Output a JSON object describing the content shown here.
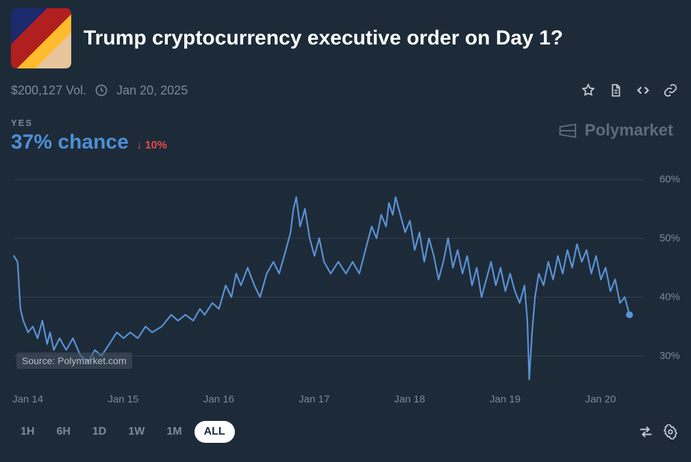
{
  "market": {
    "title": "Trump cryptocurrency executive order on Day 1?",
    "volume_text": "$200,127 Vol.",
    "resolution_date": "Jan 20, 2025"
  },
  "outcome": {
    "label": "YES",
    "chance_text": "37% chance",
    "delta_text": "10%",
    "delta_direction": "down",
    "chance_color": "#4f8fd6",
    "delta_color": "#e64a4a"
  },
  "watermark": {
    "text": "Polymarket"
  },
  "chart": {
    "type": "line",
    "line_color": "#5b93d6",
    "line_width": 2.2,
    "background_color": "#1d2b39",
    "grid_color": "#33414f",
    "end_marker_color": "#5b93d6",
    "end_marker_radius": 5,
    "x_axis": {
      "min": 14,
      "max": 20.6,
      "ticks": [
        14,
        15,
        16,
        17,
        18,
        19,
        20
      ],
      "tick_labels": [
        "Jan 14",
        "Jan 15",
        "Jan 16",
        "Jan 17",
        "Jan 18",
        "Jan 19",
        "Jan 20"
      ],
      "label_fontsize": 15,
      "label_color": "#7d8a97"
    },
    "y_axis": {
      "min": 25,
      "max": 62,
      "gridlines": [
        30,
        40,
        50,
        60
      ],
      "tick_labels": [
        "30%",
        "40%",
        "50%",
        "60%"
      ],
      "label_fontsize": 15,
      "label_color": "#7d8a97"
    },
    "series": [
      {
        "x": 14.0,
        "y": 47
      },
      {
        "x": 14.04,
        "y": 46
      },
      {
        "x": 14.07,
        "y": 38
      },
      {
        "x": 14.1,
        "y": 36
      },
      {
        "x": 14.15,
        "y": 34
      },
      {
        "x": 14.2,
        "y": 35
      },
      {
        "x": 14.25,
        "y": 33
      },
      {
        "x": 14.3,
        "y": 36
      },
      {
        "x": 14.35,
        "y": 32
      },
      {
        "x": 14.38,
        "y": 34
      },
      {
        "x": 14.42,
        "y": 31
      },
      {
        "x": 14.48,
        "y": 33
      },
      {
        "x": 14.55,
        "y": 31
      },
      {
        "x": 14.62,
        "y": 33
      },
      {
        "x": 14.7,
        "y": 30
      },
      {
        "x": 14.78,
        "y": 29
      },
      {
        "x": 14.85,
        "y": 31
      },
      {
        "x": 14.92,
        "y": 30
      },
      {
        "x": 15.0,
        "y": 32
      },
      {
        "x": 15.08,
        "y": 34
      },
      {
        "x": 15.15,
        "y": 33
      },
      {
        "x": 15.22,
        "y": 34
      },
      {
        "x": 15.3,
        "y": 33
      },
      {
        "x": 15.38,
        "y": 35
      },
      {
        "x": 15.45,
        "y": 34
      },
      {
        "x": 15.55,
        "y": 35
      },
      {
        "x": 15.65,
        "y": 37
      },
      {
        "x": 15.72,
        "y": 36
      },
      {
        "x": 15.8,
        "y": 37
      },
      {
        "x": 15.88,
        "y": 36
      },
      {
        "x": 15.95,
        "y": 38
      },
      {
        "x": 16.0,
        "y": 37
      },
      {
        "x": 16.08,
        "y": 39
      },
      {
        "x": 16.15,
        "y": 38
      },
      {
        "x": 16.22,
        "y": 42
      },
      {
        "x": 16.28,
        "y": 40
      },
      {
        "x": 16.33,
        "y": 44
      },
      {
        "x": 16.38,
        "y": 42
      },
      {
        "x": 16.45,
        "y": 45
      },
      {
        "x": 16.52,
        "y": 42
      },
      {
        "x": 16.58,
        "y": 40
      },
      {
        "x": 16.65,
        "y": 44
      },
      {
        "x": 16.72,
        "y": 46
      },
      {
        "x": 16.78,
        "y": 44
      },
      {
        "x": 16.85,
        "y": 48
      },
      {
        "x": 16.9,
        "y": 51
      },
      {
        "x": 16.93,
        "y": 55
      },
      {
        "x": 16.96,
        "y": 57
      },
      {
        "x": 17.0,
        "y": 52
      },
      {
        "x": 17.05,
        "y": 55
      },
      {
        "x": 17.1,
        "y": 50
      },
      {
        "x": 17.15,
        "y": 47
      },
      {
        "x": 17.2,
        "y": 50
      },
      {
        "x": 17.25,
        "y": 46
      },
      {
        "x": 17.32,
        "y": 44
      },
      {
        "x": 17.4,
        "y": 46
      },
      {
        "x": 17.48,
        "y": 44
      },
      {
        "x": 17.55,
        "y": 46
      },
      {
        "x": 17.62,
        "y": 44
      },
      {
        "x": 17.7,
        "y": 49
      },
      {
        "x": 17.75,
        "y": 52
      },
      {
        "x": 17.8,
        "y": 50
      },
      {
        "x": 17.85,
        "y": 54
      },
      {
        "x": 17.9,
        "y": 52
      },
      {
        "x": 17.93,
        "y": 56
      },
      {
        "x": 17.97,
        "y": 54
      },
      {
        "x": 18.0,
        "y": 57
      },
      {
        "x": 18.05,
        "y": 54
      },
      {
        "x": 18.1,
        "y": 51
      },
      {
        "x": 18.15,
        "y": 53
      },
      {
        "x": 18.2,
        "y": 48
      },
      {
        "x": 18.25,
        "y": 51
      },
      {
        "x": 18.3,
        "y": 46
      },
      {
        "x": 18.35,
        "y": 50
      },
      {
        "x": 18.4,
        "y": 47
      },
      {
        "x": 18.45,
        "y": 43
      },
      {
        "x": 18.5,
        "y": 46
      },
      {
        "x": 18.55,
        "y": 50
      },
      {
        "x": 18.6,
        "y": 45
      },
      {
        "x": 18.65,
        "y": 48
      },
      {
        "x": 18.7,
        "y": 44
      },
      {
        "x": 18.75,
        "y": 47
      },
      {
        "x": 18.8,
        "y": 42
      },
      {
        "x": 18.85,
        "y": 45
      },
      {
        "x": 18.9,
        "y": 40
      },
      {
        "x": 18.95,
        "y": 43
      },
      {
        "x": 19.0,
        "y": 46
      },
      {
        "x": 19.05,
        "y": 42
      },
      {
        "x": 19.1,
        "y": 45
      },
      {
        "x": 19.15,
        "y": 41
      },
      {
        "x": 19.2,
        "y": 44
      },
      {
        "x": 19.25,
        "y": 41
      },
      {
        "x": 19.3,
        "y": 39
      },
      {
        "x": 19.35,
        "y": 42
      },
      {
        "x": 19.38,
        "y": 36
      },
      {
        "x": 19.4,
        "y": 26
      },
      {
        "x": 19.43,
        "y": 34
      },
      {
        "x": 19.46,
        "y": 40
      },
      {
        "x": 19.5,
        "y": 44
      },
      {
        "x": 19.55,
        "y": 42
      },
      {
        "x": 19.6,
        "y": 46
      },
      {
        "x": 19.65,
        "y": 43
      },
      {
        "x": 19.7,
        "y": 47
      },
      {
        "x": 19.75,
        "y": 44
      },
      {
        "x": 19.8,
        "y": 48
      },
      {
        "x": 19.85,
        "y": 45
      },
      {
        "x": 19.9,
        "y": 49
      },
      {
        "x": 19.95,
        "y": 46
      },
      {
        "x": 20.0,
        "y": 48
      },
      {
        "x": 20.05,
        "y": 44
      },
      {
        "x": 20.1,
        "y": 47
      },
      {
        "x": 20.15,
        "y": 43
      },
      {
        "x": 20.2,
        "y": 45
      },
      {
        "x": 20.25,
        "y": 41
      },
      {
        "x": 20.3,
        "y": 43
      },
      {
        "x": 20.35,
        "y": 39
      },
      {
        "x": 20.4,
        "y": 40
      },
      {
        "x": 20.45,
        "y": 37
      }
    ],
    "source_text": "Source: Polymarket.com"
  },
  "timeframes": {
    "options": [
      "1H",
      "6H",
      "1D",
      "1W",
      "1M",
      "ALL"
    ],
    "active": "ALL"
  }
}
